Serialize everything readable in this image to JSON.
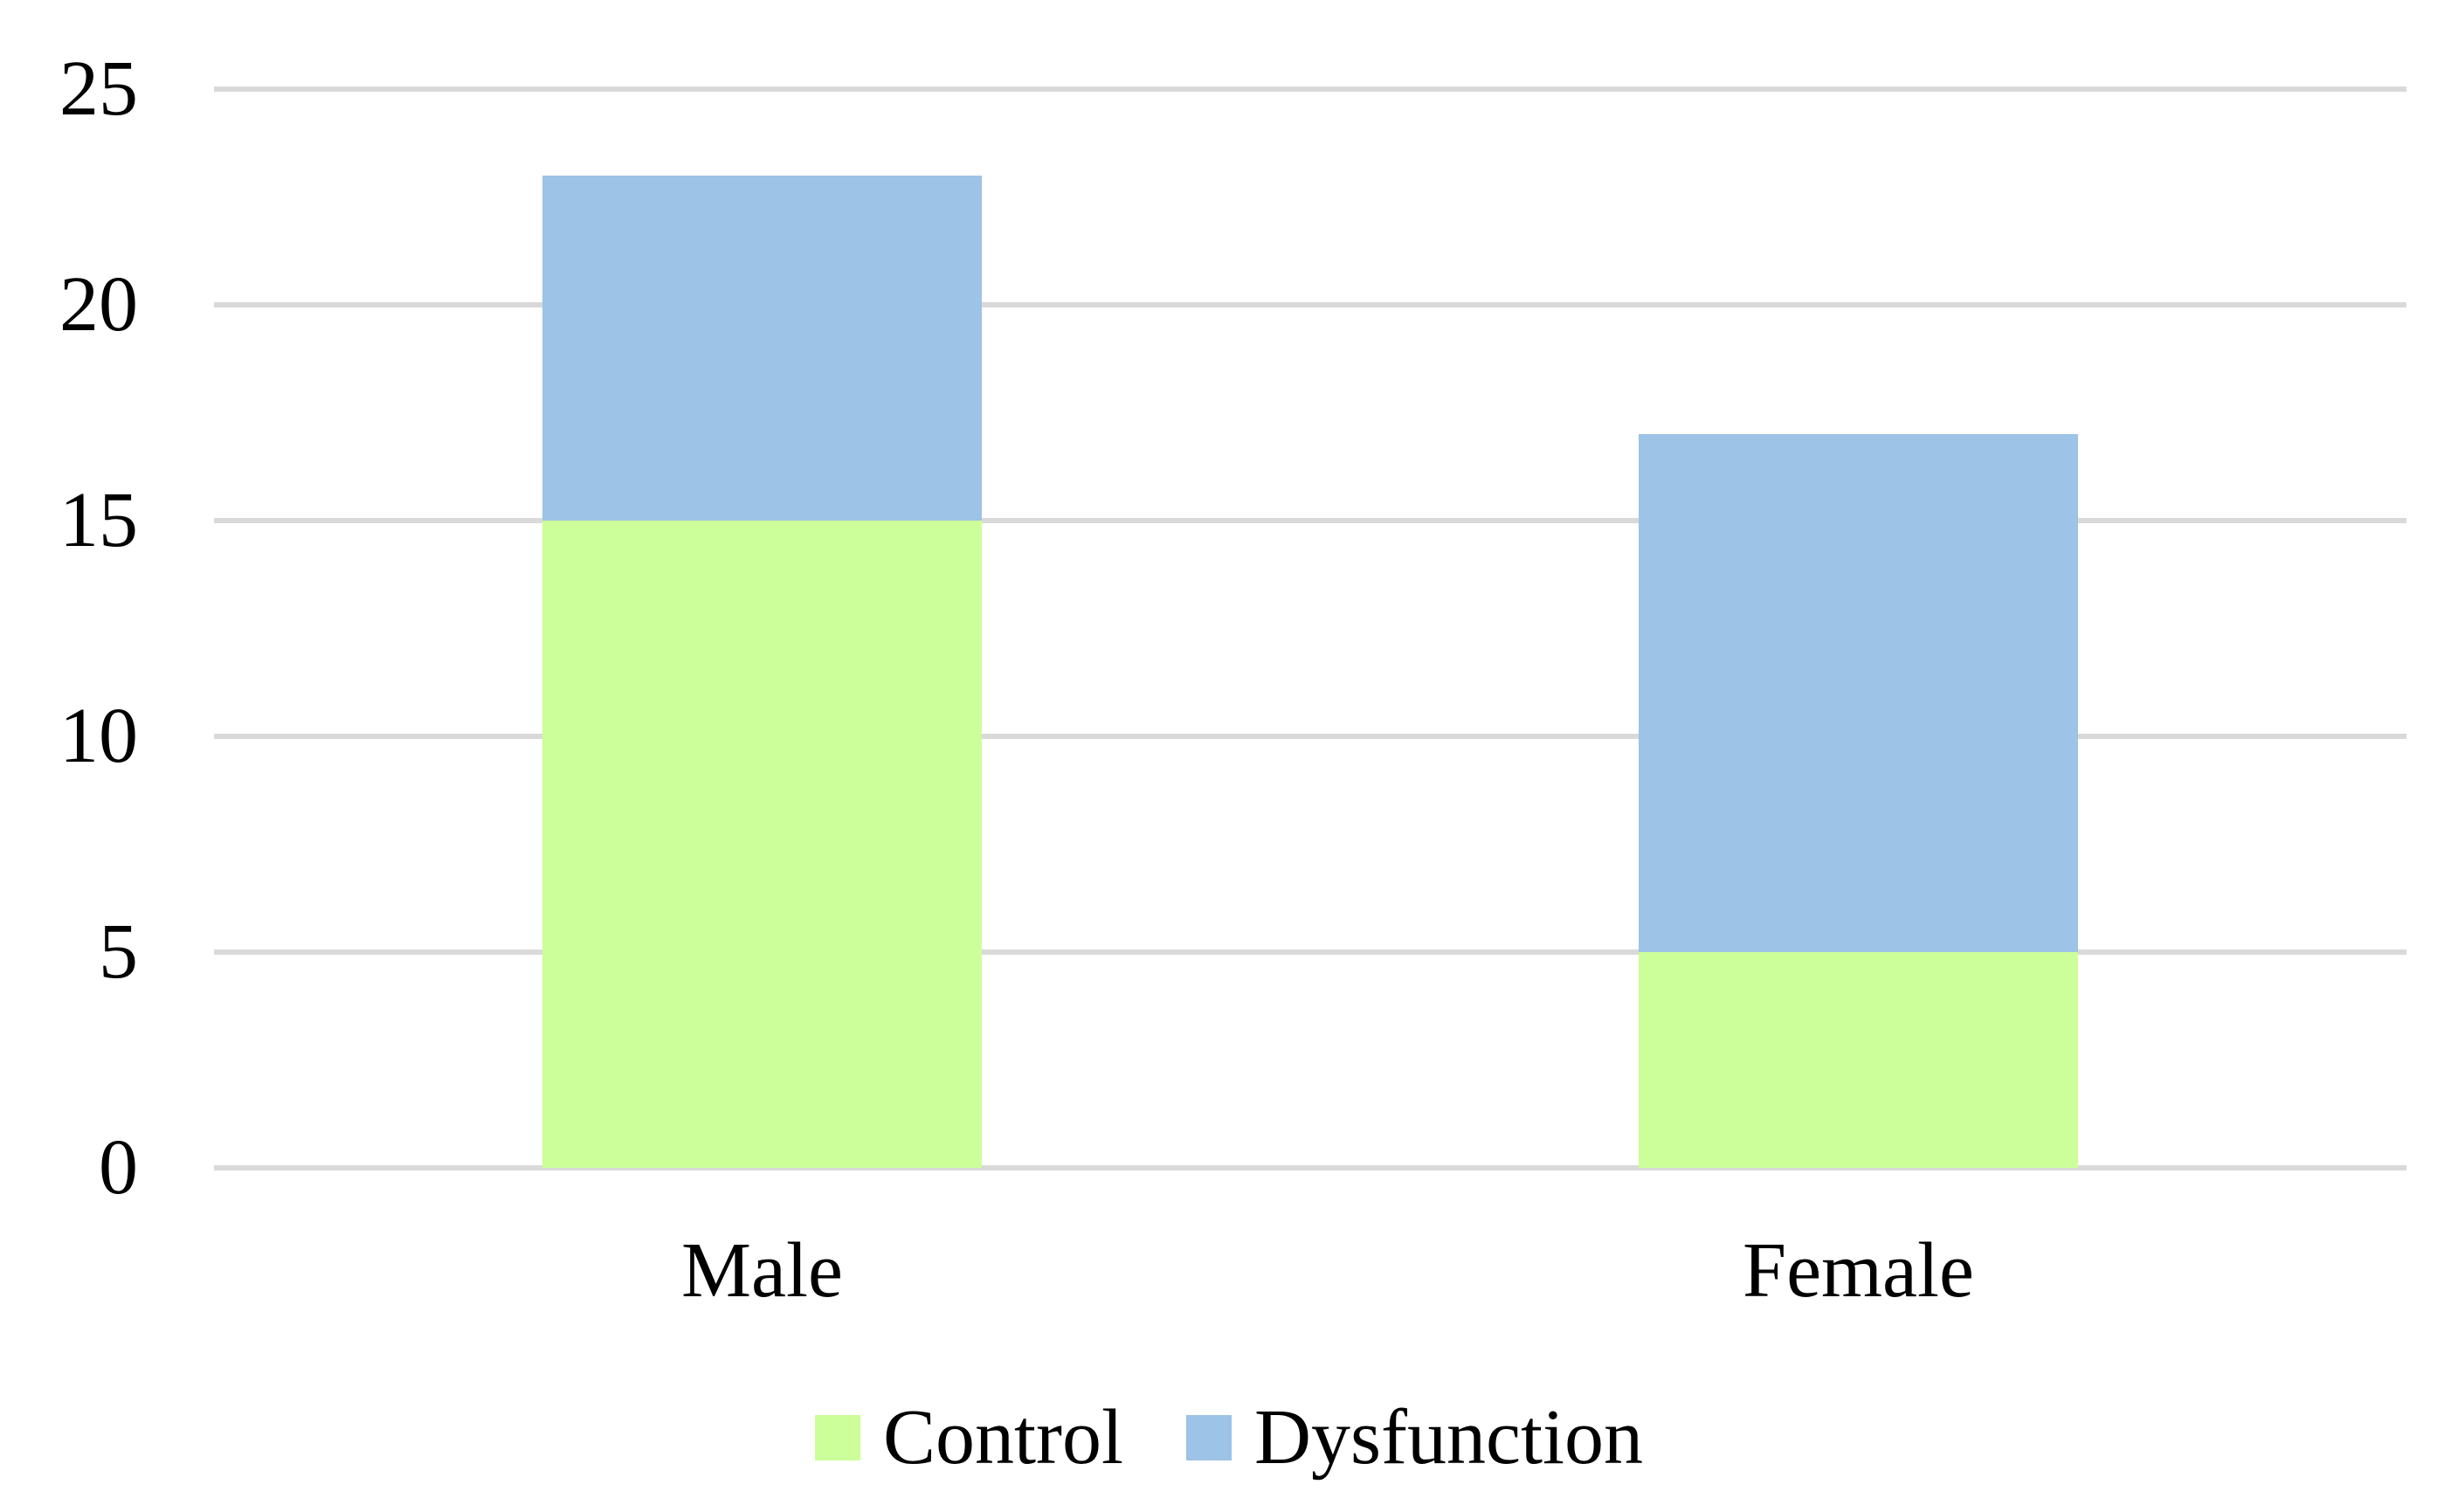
{
  "chart_data": {
    "type": "bar",
    "variant": "stacked-column",
    "title": "",
    "xlabel": "",
    "ylabel": "",
    "categories": [
      "Male",
      "Female"
    ],
    "series": [
      {
        "name": "Control",
        "color": "#CCFE99",
        "values": [
          15,
          5
        ]
      },
      {
        "name": "Dysfunction",
        "color": "#9DC3E6",
        "values": [
          8,
          12
        ]
      }
    ],
    "stack_totals": [
      23,
      17
    ],
    "ylim": [
      0,
      25
    ],
    "yticks": [
      0,
      5,
      10,
      15,
      20,
      25
    ],
    "grid": true,
    "gridline_color": "#D9D9D9",
    "background_color": "#FFFFFF",
    "text_color": "#000000",
    "legend_position": "bottom"
  }
}
